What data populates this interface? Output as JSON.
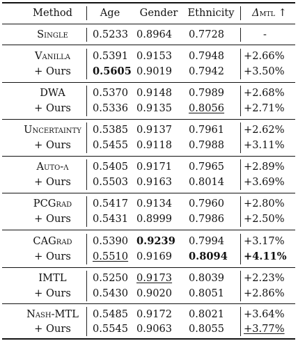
{
  "columns": {
    "method": "Method",
    "age": "Age",
    "gender": "Gender",
    "ethnicity": "Ethnicity",
    "delta_symbol": "Δ",
    "delta_sub": "MTL",
    "delta_arrow": "↑"
  },
  "single": {
    "method": "Single",
    "age": "0.5233",
    "gender": "0.8964",
    "ethnicity": "0.7728",
    "delta": "-"
  },
  "groups": [
    {
      "method": "Vanilla",
      "small_caps": true,
      "base": {
        "age": "0.5391",
        "gender": "0.9153",
        "ethnicity": "0.7948",
        "delta": "+2.66%"
      },
      "ours": {
        "label": "+ Ours",
        "age": "0.5605",
        "gender": "0.9019",
        "ethnicity": "0.7942",
        "delta": "+3.50%"
      }
    },
    {
      "method": "DWA",
      "small_caps": false,
      "base": {
        "age": "0.5370",
        "gender": "0.9148",
        "ethnicity": "0.7989",
        "delta": "+2.68%"
      },
      "ours": {
        "label": "+ Ours",
        "age": "0.5336",
        "gender": "0.9135",
        "ethnicity": "0.8056",
        "delta": "+2.71%"
      }
    },
    {
      "method": "Uncertainty",
      "small_caps": true,
      "base": {
        "age": "0.5385",
        "gender": "0.9137",
        "ethnicity": "0.7961",
        "delta": "+2.62%"
      },
      "ours": {
        "label": "+ Ours",
        "age": "0.5455",
        "gender": "0.9118",
        "ethnicity": "0.7988",
        "delta": "+3.11%"
      }
    },
    {
      "method": "Auto-λ",
      "small_caps": true,
      "base": {
        "age": "0.5405",
        "gender": "0.9171",
        "ethnicity": "0.7965",
        "delta": "+2.89%"
      },
      "ours": {
        "label": "+ Ours",
        "age": "0.5503",
        "gender": "0.9163",
        "ethnicity": "0.8014",
        "delta": "+3.69%"
      }
    },
    {
      "method": "PCGrad",
      "small_caps": true,
      "base": {
        "age": "0.5417",
        "gender": "0.9134",
        "ethnicity": "0.7960",
        "delta": "+2.80%"
      },
      "ours": {
        "label": "+ Ours",
        "age": "0.5431",
        "gender": "0.8999",
        "ethnicity": "0.7986",
        "delta": "+2.50%"
      }
    },
    {
      "method": "CAGrad",
      "small_caps": true,
      "base": {
        "age": "0.5390",
        "gender": "0.9239",
        "ethnicity": "0.7994",
        "delta": "+3.17%"
      },
      "ours": {
        "label": "+ Ours",
        "age": "0.5510",
        "gender": "0.9169",
        "ethnicity": "0.8094",
        "delta": "+4.11%"
      }
    },
    {
      "method": "IMTL",
      "small_caps": false,
      "base": {
        "age": "0.5250",
        "gender": "0.9173",
        "ethnicity": "0.8039",
        "delta": "+2.23%"
      },
      "ours": {
        "label": "+ Ours",
        "age": "0.5430",
        "gender": "0.9020",
        "ethnicity": "0.8051",
        "delta": "+2.86%"
      }
    },
    {
      "method": "Nash-MTL",
      "small_caps": true,
      "base": {
        "age": "0.5485",
        "gender": "0.9172",
        "ethnicity": "0.8021",
        "delta": "+3.64%"
      },
      "ours": {
        "label": "+ Ours",
        "age": "0.5545",
        "gender": "0.9063",
        "ethnicity": "0.8055",
        "delta": "+3.77%"
      }
    }
  ]
}
